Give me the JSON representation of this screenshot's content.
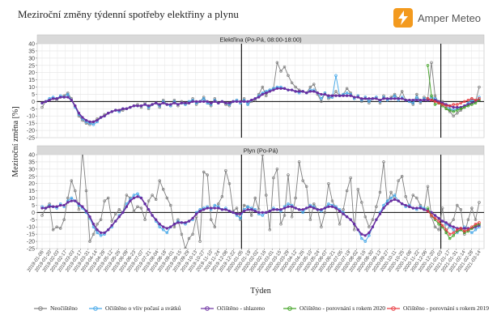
{
  "header": {
    "title": "Meziroční změny týdenní spotřeby elektřiny a plynu",
    "brand": "Amper Meteo",
    "brand_color": "#f39a1e"
  },
  "chart_data": {
    "type": "line",
    "ylabel": "Meziroční změna [%]",
    "xlabel": "Týden",
    "panels": [
      {
        "title": "Elektřina (Po-Pá, 08:00-18:00)",
        "ylim": [
          -25,
          40
        ],
        "yticks": [
          -25,
          -20,
          -15,
          -10,
          -5,
          0,
          5,
          10,
          15,
          20,
          25,
          30,
          35,
          40
        ]
      },
      {
        "title": "Plyn (Po-Pá)",
        "ylim": [
          -25,
          40
        ],
        "yticks": [
          -25,
          -20,
          -15,
          -10,
          -5,
          0,
          5,
          10,
          15,
          20,
          25,
          30,
          35,
          40
        ]
      }
    ],
    "x_tick_labels": [
      "2019-01-06",
      "2019-01-20",
      "2019-02-03",
      "2019-02-17",
      "2019-03-03",
      "2019-03-17",
      "2019-03-31",
      "2019-04-14",
      "2019-04-28",
      "2019-05-12",
      "2019-05-26",
      "2019-06-09",
      "2019-06-23",
      "2019-07-07",
      "2019-07-21",
      "2019-08-04",
      "2019-08-18",
      "2019-09-01",
      "2019-09-15",
      "2019-09-29",
      "2019-10-13",
      "2019-10-27",
      "2019-11-10",
      "2019-11-24",
      "2019-12-08",
      "2019-12-22",
      "2020-01-05",
      "2020-01-19",
      "2020-02-02",
      "2020-02-16",
      "2020-03-01",
      "2020-03-15",
      "2020-03-29",
      "2020-04-12",
      "2020-04-26",
      "2020-05-10",
      "2020-05-24",
      "2020-06-07",
      "2020-06-21",
      "2020-07-05",
      "2020-07-19",
      "2020-08-02",
      "2020-08-16",
      "2020-08-30",
      "2020-09-13",
      "2020-09-27",
      "2020-10-11",
      "2020-10-25",
      "2020-11-08",
      "2020-11-22",
      "2020-12-06",
      "2020-12-20",
      "2021-01-03",
      "2021-01-17",
      "2021-01-31",
      "2021-02-14",
      "2021-02-28",
      "2021-03-14"
    ],
    "vertical_lines": [
      "2020-01-05",
      "2021-01-03"
    ],
    "series": [
      {
        "name": "Neočištěno",
        "color": "#7f7f7f",
        "marker": "circle-open"
      },
      {
        "name": "Očištěno o vliv počasí a svátků",
        "color": "#3fa5e8",
        "marker": "circle-open"
      },
      {
        "name": "Očištěno - shlazeno",
        "color": "#6a2ea0",
        "marker": "circle-open"
      },
      {
        "name": "Očištěno - porovnání s rokem 2020",
        "color": "#3ea121",
        "marker": "circle-open"
      },
      {
        "name": "Očištěno - porovnání s rokem 2019",
        "color": "#e8343a",
        "marker": "circle-open"
      }
    ],
    "electricity": {
      "neocisteno": [
        -4,
        0,
        1,
        2,
        1,
        3,
        4,
        6,
        2,
        -3,
        -10,
        -13,
        -15,
        -16,
        -14,
        -12,
        -11,
        -9,
        -8,
        -7,
        -6,
        -7,
        -6,
        -5,
        -4,
        -3,
        -2,
        -4,
        -1,
        -5,
        -2,
        -1,
        -4,
        1,
        -2,
        -3,
        1,
        -3,
        0,
        -2,
        -1,
        2,
        -2,
        0,
        3,
        -1,
        -3,
        2,
        -1,
        0,
        -2,
        -3,
        0,
        1,
        -1,
        2,
        -2,
        0,
        1,
        5,
        10,
        4,
        8,
        9,
        27,
        21,
        24,
        18,
        13,
        10,
        8,
        7,
        6,
        10,
        12,
        5,
        0,
        6,
        2,
        3,
        7,
        4,
        5,
        9,
        6,
        2,
        4,
        0,
        3,
        -1,
        2,
        3,
        -1,
        4,
        1,
        3,
        5,
        2,
        7,
        1,
        0,
        -2,
        5,
        -1,
        3,
        2,
        27,
        4,
        -1,
        0,
        -5,
        -7,
        -10,
        -8,
        -6,
        -4,
        -1,
        2,
        0,
        10
      ],
      "ocisteno": [
        -1,
        0,
        2,
        3,
        2,
        4,
        3,
        5,
        1,
        -4,
        -9,
        -12,
        -14,
        -15,
        -16,
        -14,
        -11,
        -10,
        -8,
        -7,
        -6,
        -7,
        -5,
        -5,
        -4,
        -3,
        -3,
        -3,
        -2,
        -4,
        -2,
        -1,
        -3,
        0,
        -2,
        -3,
        0,
        -2,
        -1,
        -2,
        0,
        1,
        -1,
        0,
        2,
        -1,
        -2,
        1,
        -1,
        0,
        -1,
        -2,
        0,
        1,
        -1,
        1,
        -2,
        1,
        2,
        4,
        6,
        7,
        8,
        9,
        10,
        10,
        9,
        8,
        8,
        7,
        6,
        7,
        6,
        8,
        8,
        6,
        2,
        6,
        3,
        3,
        18,
        4,
        5,
        6,
        5,
        2,
        4,
        1,
        3,
        0,
        2,
        3,
        0,
        3,
        1,
        2,
        4,
        1,
        3,
        1,
        0,
        -1,
        3,
        0,
        2,
        1,
        3,
        2,
        0,
        -1,
        -3,
        -5,
        -6,
        -5,
        -4,
        -3,
        -1,
        1,
        0,
        3
      ],
      "shlazeno": [
        -1,
        0,
        1,
        2,
        2,
        3,
        3,
        3,
        1,
        -3,
        -8,
        -11,
        -13,
        -14,
        -14,
        -13,
        -11,
        -10,
        -8,
        -7,
        -6,
        -6,
        -5,
        -5,
        -4,
        -3,
        -3,
        -3,
        -2,
        -3,
        -2,
        -1,
        -2,
        -1,
        -2,
        -2,
        -1,
        -2,
        -1,
        -1,
        -1,
        0,
        0,
        0,
        0,
        0,
        -1,
        0,
        -1,
        0,
        -1,
        -1,
        0,
        0,
        0,
        0,
        0,
        1,
        2,
        3,
        5,
        6,
        7,
        8,
        9,
        9,
        9,
        8,
        8,
        7,
        7,
        7,
        6,
        7,
        7,
        6,
        5,
        5,
        4,
        4,
        4,
        4,
        4,
        4,
        4,
        3,
        3,
        2,
        2,
        2,
        2,
        2,
        1,
        2,
        2,
        2,
        2,
        2,
        2,
        1,
        1,
        1,
        1,
        1,
        1,
        1,
        1,
        1,
        0,
        -1,
        -2,
        -3,
        -4,
        -4,
        -4,
        -3,
        -2,
        -1,
        0,
        1
      ],
      "porovnani_2020": [
        25,
        4,
        -2,
        -1,
        -3,
        -5,
        -6,
        -7,
        -6,
        -5,
        -4,
        -3,
        -2,
        -1,
        1
      ],
      "porovnani_2019": [
        2,
        1,
        0,
        -1,
        -2,
        -3,
        -3,
        -2,
        -2,
        -1,
        0,
        1,
        2,
        1,
        2
      ]
    },
    "gas": {
      "neocisteno": [
        -2,
        3,
        6,
        -12,
        -10,
        -11,
        -5,
        10,
        22,
        15,
        2,
        43,
        15,
        -20,
        -15,
        -8,
        -5,
        8,
        10,
        -6,
        -1,
        2,
        0,
        12,
        10,
        1,
        4,
        3,
        -5,
        8,
        12,
        9,
        22,
        16,
        10,
        5,
        -10,
        -5,
        -15,
        -25,
        -18,
        -15,
        -3,
        -20,
        28,
        26,
        -5,
        -10,
        6,
        11,
        29,
        20,
        1,
        3,
        -5,
        5,
        4,
        -2,
        10,
        2,
        40,
        12,
        -12,
        24,
        30,
        -8,
        -2,
        26,
        -3,
        10,
        35,
        22,
        18,
        -5,
        6,
        2,
        -10,
        0,
        20,
        8,
        3,
        -8,
        2,
        15,
        24,
        -12,
        16,
        7,
        -3,
        -10,
        -5,
        4,
        14,
        35,
        6,
        14,
        9,
        22,
        25,
        11,
        4,
        12,
        10,
        5,
        2,
        18,
        -3,
        -10,
        -12,
        3,
        -14,
        -8,
        -5,
        5,
        2,
        -15,
        -5,
        3,
        -5,
        7
      ],
      "ocisteno": [
        4,
        3,
        5,
        4,
        3,
        6,
        4,
        8,
        10,
        8,
        5,
        3,
        0,
        -4,
        -10,
        -14,
        -16,
        -15,
        -12,
        -10,
        -6,
        -2,
        0,
        6,
        9,
        12,
        13,
        10,
        6,
        2,
        -2,
        -6,
        -10,
        -12,
        -14,
        -10,
        -8,
        -6,
        -7,
        -8,
        -6,
        -5,
        0,
        2,
        3,
        4,
        2,
        5,
        4,
        2,
        3,
        1,
        0,
        -2,
        -4,
        2,
        4,
        3,
        2,
        -1,
        -2,
        0,
        1,
        3,
        2,
        1,
        4,
        6,
        5,
        3,
        2,
        0,
        3,
        5,
        4,
        2,
        1,
        3,
        6,
        5,
        4,
        2,
        0,
        -3,
        -5,
        -8,
        -12,
        -18,
        -20,
        -16,
        -10,
        -5,
        0,
        5,
        8,
        10,
        12,
        8,
        6,
        4,
        5,
        3,
        2,
        4,
        3,
        2,
        0,
        -2,
        -4,
        -6,
        -8,
        -10,
        -12,
        -14,
        -12,
        -10,
        -12,
        -14,
        -12,
        -10
      ],
      "shlazeno": [
        3,
        3,
        4,
        4,
        4,
        5,
        5,
        7,
        8,
        8,
        6,
        4,
        1,
        -3,
        -8,
        -12,
        -14,
        -14,
        -12,
        -9,
        -6,
        -3,
        0,
        4,
        8,
        10,
        11,
        10,
        6,
        2,
        -2,
        -5,
        -8,
        -10,
        -11,
        -10,
        -8,
        -7,
        -7,
        -7,
        -6,
        -4,
        -1,
        1,
        2,
        3,
        3,
        3,
        3,
        2,
        2,
        1,
        0,
        -1,
        -1,
        1,
        2,
        2,
        1,
        0,
        0,
        0,
        1,
        2,
        2,
        2,
        3,
        4,
        4,
        3,
        2,
        2,
        3,
        4,
        3,
        2,
        2,
        3,
        4,
        4,
        3,
        1,
        -1,
        -3,
        -5,
        -8,
        -12,
        -15,
        -16,
        -14,
        -10,
        -5,
        -1,
        3,
        6,
        8,
        9,
        8,
        6,
        5,
        4,
        3,
        3,
        3,
        2,
        1,
        0,
        -2,
        -4,
        -6,
        -7,
        -9,
        -10,
        -11,
        -11,
        -11,
        -11,
        -11,
        -10,
        -9
      ],
      "porovnani_2020": [
        3,
        -2,
        -5,
        -8,
        -10,
        -14,
        -18,
        -16,
        -13,
        -12,
        -14,
        -13,
        -11,
        -9,
        -8
      ],
      "porovnani_2019": [
        1,
        -2,
        -4,
        -6,
        -9,
        -12,
        -15,
        -14,
        -12,
        -11,
        -13,
        -12,
        -10,
        -8,
        -7
      ]
    }
  }
}
